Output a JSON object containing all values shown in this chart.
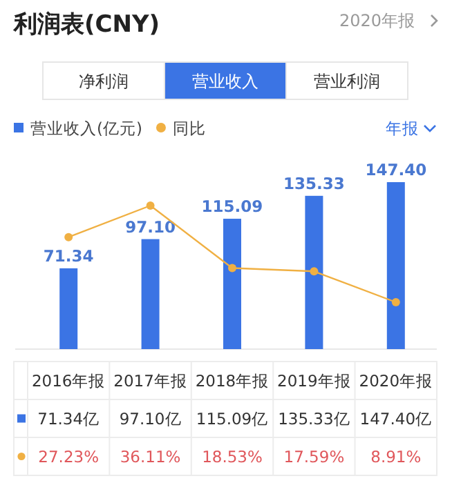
{
  "chart_data": {
    "type": "bar",
    "title": "利润表(CNY)",
    "subtitle": "2020年报",
    "annotations": [
      "净利润",
      "营业收入",
      "营业利润",
      "年报",
      "71.34亿",
      "97.10亿",
      "115.09亿",
      "135.33亿",
      "147.40亿"
    ],
    "categories": [
      "2016年报",
      "2017年报",
      "2018年报",
      "2019年报",
      "2020年报"
    ],
    "series": [
      {
        "name": "营业收入(亿元)",
        "color": "#3b74e4",
        "values": [
          71.34,
          97.1,
          115.09,
          135.33,
          147.4
        ],
        "value_labels": [
          "71.34",
          "97.10",
          "115.09",
          "135.33",
          "147.40"
        ]
      },
      {
        "name": "同比",
        "type": "line",
        "axis": "y2",
        "color": "#f0b043",
        "marker": "circle",
        "values": [
          27.23,
          36.11,
          18.53,
          17.59,
          8.91
        ],
        "value_labels": [
          "27.23%",
          "36.11%",
          "18.53%",
          "17.59%",
          "8.91%"
        ]
      }
    ],
    "legend": "top left",
    "tick_labels": false
  }
}
